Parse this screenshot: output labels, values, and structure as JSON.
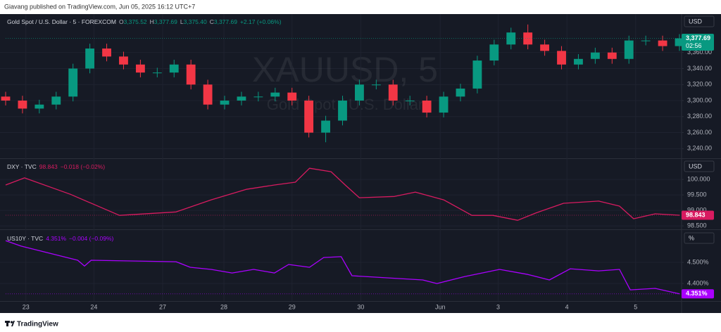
{
  "page": {
    "header": "Giavang published on TradingView.com, Jun 05, 2025 16:12 UTC+7",
    "footer": "TradingView"
  },
  "chart_data": [
    {
      "type": "candlestick",
      "watermark": "XAUUSD, 5",
      "watermark_subtitle": "Gold Spot / U.S. Dollar",
      "legend": {
        "name": "Gold Spot / U.S. Dollar · 5 · FOREXCOM",
        "ohlc": [
          {
            "key": "O",
            "value": "3,375.52"
          },
          {
            "key": "H",
            "value": "3,377.69"
          },
          {
            "key": "L",
            "value": "3,375.40"
          },
          {
            "key": "C",
            "value": "3,377.69"
          }
        ],
        "change": "+2.17 (+0.06%)"
      },
      "unit": "USD",
      "last_label": "3,377.69",
      "countdown": "02:56",
      "up_color": "#089981",
      "down_color": "#f23645",
      "x": [
        0,
        2.5,
        5,
        7.5,
        10,
        12.5,
        15,
        17.5,
        20,
        22.5,
        25,
        27.5,
        30,
        32.5,
        35,
        37.5,
        40,
        42.5,
        45,
        47.5,
        50,
        52.5,
        55,
        57.5,
        60,
        62.5,
        65,
        67.5,
        70,
        72.5,
        75,
        77.5,
        80,
        82.5,
        85,
        87.5,
        90,
        92.5,
        95,
        97.5,
        100
      ],
      "open": [
        3305,
        3300,
        3290,
        3295,
        3305,
        3340,
        3365,
        3355,
        3345,
        3335,
        3335,
        3345,
        3320,
        3295,
        3300,
        3305,
        3305,
        3310,
        3300,
        3260,
        3275,
        3300,
        3320,
        3320,
        3300,
        3300,
        3285,
        3305,
        3315,
        3350,
        3370,
        3385,
        3370,
        3362,
        3345,
        3352,
        3360,
        3352,
        3375,
        3375,
        3368
      ],
      "high": [
        3311,
        3306,
        3301,
        3311,
        3346,
        3371,
        3371,
        3361,
        3351,
        3341,
        3351,
        3351,
        3326,
        3306,
        3311,
        3311,
        3316,
        3316,
        3306,
        3281,
        3306,
        3326,
        3326,
        3326,
        3306,
        3306,
        3311,
        3321,
        3356,
        3376,
        3391,
        3395,
        3376,
        3368,
        3358,
        3366,
        3366,
        3381,
        3381,
        3381,
        3383
      ],
      "low": [
        3294,
        3284,
        3284,
        3289,
        3299,
        3334,
        3349,
        3339,
        3329,
        3329,
        3329,
        3314,
        3289,
        3289,
        3294,
        3299,
        3299,
        3294,
        3254,
        3248,
        3269,
        3294,
        3314,
        3294,
        3294,
        3279,
        3279,
        3299,
        3309,
        3344,
        3364,
        3364,
        3356,
        3339,
        3339,
        3346,
        3346,
        3346,
        3369,
        3362,
        3362
      ],
      "close": [
        3300,
        3290,
        3295,
        3305,
        3340,
        3365,
        3355,
        3345,
        3335,
        3335,
        3345,
        3320,
        3295,
        3300,
        3305,
        3305,
        3310,
        3300,
        3260,
        3275,
        3300,
        3320,
        3320,
        3300,
        3300,
        3285,
        3305,
        3315,
        3350,
        3370,
        3385,
        3370,
        3362,
        3345,
        3352,
        3360,
        3352,
        3375,
        3375,
        3368,
        3377.69
      ],
      "xlim": [
        0,
        100
      ],
      "ylim": [
        3228,
        3408
      ],
      "yticks": [
        {
          "value": 3240,
          "label": "3,240.00"
        },
        {
          "value": 3260,
          "label": "3,260.00"
        },
        {
          "value": 3280,
          "label": "3,280.00"
        },
        {
          "value": 3300,
          "label": "3,300.00"
        },
        {
          "value": 3320,
          "label": "3,320.00"
        },
        {
          "value": 3340,
          "label": "3,340.00"
        },
        {
          "value": 3360,
          "label": "3,360.00"
        }
      ],
      "grid": true
    },
    {
      "type": "line",
      "color": "#d81b60",
      "legend": {
        "name": "DXY · TVC",
        "value": "98.843",
        "change": "−0.018 (−0.02%)"
      },
      "unit": "USD",
      "last_label": "98.843",
      "x": [
        0,
        2.8,
        9.6,
        16.9,
        25.3,
        30.5,
        35.7,
        39.9,
        43,
        45.1,
        48.3,
        50.4,
        52.5,
        57.7,
        60.8,
        65,
        69.2,
        72.3,
        76,
        78.6,
        82.8,
        88,
        91.1,
        93.2,
        96.4,
        100
      ],
      "values": [
        99.82,
        100.05,
        99.52,
        98.84,
        98.95,
        99.34,
        99.68,
        99.82,
        99.91,
        100.36,
        100.25,
        99.82,
        99.41,
        99.45,
        99.59,
        99.34,
        98.84,
        98.84,
        98.68,
        98.91,
        99.23,
        99.3,
        99.14,
        98.73,
        98.89,
        98.843
      ],
      "xlim": [
        0,
        100
      ],
      "ylim": [
        98.39,
        100.66
      ],
      "yticks": [
        {
          "value": 98.5,
          "label": "98.500"
        },
        {
          "value": 99,
          "label": "99.000"
        },
        {
          "value": 99.5,
          "label": "99.500"
        },
        {
          "value": 100,
          "label": "100.000"
        }
      ],
      "grid": true
    },
    {
      "type": "line",
      "color": "#aa00ff",
      "legend": {
        "name": "US10Y · TVC",
        "value": "4.351%",
        "change": "−0.004 (−0.09%)"
      },
      "unit": "%",
      "last_label": "4.351%",
      "x": [
        0,
        2.3,
        10.7,
        11.7,
        12.7,
        25.3,
        27.4,
        30.5,
        33.6,
        36.8,
        39.9,
        42,
        45.1,
        47.2,
        49.8,
        51.4,
        56.6,
        61.9,
        64,
        68.1,
        73.3,
        77.5,
        80.7,
        83.8,
        88,
        91.1,
        92.7,
        96.4,
        100
      ],
      "values": [
        4.603,
        4.577,
        4.51,
        4.483,
        4.51,
        4.503,
        4.477,
        4.467,
        4.45,
        4.467,
        4.45,
        4.49,
        4.477,
        4.523,
        4.527,
        4.437,
        4.427,
        4.417,
        4.4,
        4.433,
        4.467,
        4.443,
        4.417,
        4.47,
        4.46,
        4.467,
        4.37,
        4.377,
        4.351
      ],
      "xlim": [
        0,
        100
      ],
      "ylim": [
        4.317,
        4.65
      ],
      "yticks": [
        {
          "value": 4.4,
          "label": "4.400%"
        },
        {
          "value": 4.5,
          "label": "4.500%"
        }
      ],
      "xticks": [
        {
          "value": 3,
          "label": "23"
        },
        {
          "value": 13.1,
          "label": "24"
        },
        {
          "value": 23.3,
          "label": "27"
        },
        {
          "value": 32.4,
          "label": "28"
        },
        {
          "value": 42.5,
          "label": "29"
        },
        {
          "value": 52.7,
          "label": "30"
        },
        {
          "value": 64.5,
          "label": "Jun"
        },
        {
          "value": 73.1,
          "label": "3"
        },
        {
          "value": 83.3,
          "label": "4"
        },
        {
          "value": 93.5,
          "label": "5"
        }
      ],
      "grid": true
    }
  ]
}
